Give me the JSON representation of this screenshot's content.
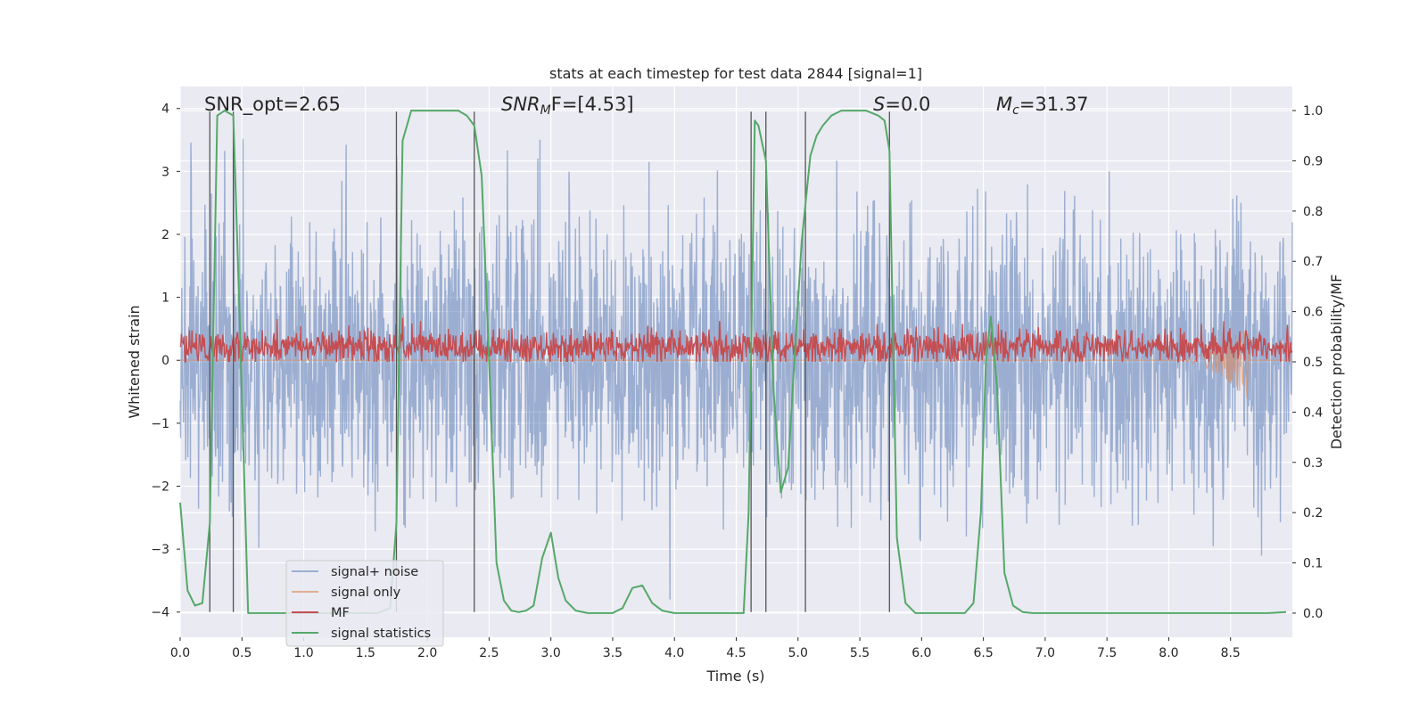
{
  "chart_data": {
    "type": "line",
    "title": "stats at each timestep for test data 2844 [signal=1]",
    "xlabel": "Time (s)",
    "ylabel_left": "Whitened strain",
    "ylabel_right": "Detection probability/MF",
    "xlim": [
      0.0,
      9.0
    ],
    "ylim_left": [
      -4.4,
      4.35
    ],
    "ylim_right": [
      -0.048,
      1.048
    ],
    "x_ticks": [
      0.0,
      0.5,
      1.0,
      1.5,
      2.0,
      2.5,
      3.0,
      3.5,
      4.0,
      4.5,
      5.0,
      5.5,
      6.0,
      6.5,
      7.0,
      7.5,
      8.0,
      8.5
    ],
    "x_tick_labels": [
      "0.0",
      "0.5",
      "1.0",
      "1.5",
      "2.0",
      "2.5",
      "3.0",
      "3.5",
      "4.0",
      "4.5",
      "5.0",
      "5.5",
      "6.0",
      "6.5",
      "7.0",
      "7.5",
      "8.0",
      "8.5"
    ],
    "y_left_ticks": [
      -4,
      -3,
      -2,
      -1,
      0,
      1,
      2,
      3,
      4
    ],
    "y_left_tick_labels": [
      "−4",
      "−3",
      "−2",
      "−1",
      "0",
      "1",
      "2",
      "3",
      "4"
    ],
    "y_right_ticks": [
      0.0,
      0.1,
      0.2,
      0.3,
      0.4,
      0.5,
      0.6,
      0.7,
      0.8,
      0.9,
      1.0
    ],
    "y_right_tick_labels": [
      "0.0",
      "0.1",
      "0.2",
      "0.3",
      "0.4",
      "0.5",
      "0.6",
      "0.7",
      "0.8",
      "0.9",
      "1.0"
    ],
    "grid": true,
    "legend_placement": "lower-left",
    "annotations": {
      "snr_opt": "SNR_opt=2.65",
      "snr_mf_main": "SNR",
      "snr_mf_sub": "M",
      "snr_mf_rest": "F=[4.53]",
      "s_main": "S",
      "s_rest": "=0.0",
      "mc_main": "M",
      "mc_sub": "c",
      "mc_rest": "=31.37"
    },
    "vertical_markers": [
      0.24,
      0.43,
      1.75,
      2.38,
      4.62,
      4.74,
      5.06,
      5.74
    ],
    "series": [
      {
        "name": "signal+ noise",
        "color": "#4c72b0",
        "opacity": 0.5,
        "axis": "left",
        "description_range": [
          -4.0,
          3.8
        ],
        "typical_amplitude": 1.6
      },
      {
        "name": "signal only",
        "color": "#dd8452",
        "opacity": 0.55,
        "axis": "left",
        "chirp_range": [
          8.0,
          8.65
        ],
        "chirp_peak": 0.65
      },
      {
        "name": "MF",
        "color": "#c44e52",
        "axis": "right",
        "baseline": 0.53,
        "spread": 0.045,
        "max": 0.63
      },
      {
        "name": "signal statistics",
        "color": "#55a868",
        "axis": "right",
        "x": [
          0.0,
          0.06,
          0.12,
          0.18,
          0.24,
          0.3,
          0.36,
          0.43,
          0.48,
          0.55,
          0.6,
          0.7,
          0.8,
          0.9,
          1.0,
          1.1,
          1.2,
          1.3,
          1.4,
          1.5,
          1.6,
          1.7,
          1.75,
          1.8,
          1.87,
          1.95,
          2.05,
          2.15,
          2.25,
          2.32,
          2.38,
          2.44,
          2.5,
          2.56,
          2.62,
          2.68,
          2.74,
          2.8,
          2.86,
          2.93,
          3.0,
          3.06,
          3.12,
          3.2,
          3.3,
          3.4,
          3.5,
          3.58,
          3.66,
          3.74,
          3.82,
          3.9,
          4.0,
          4.1,
          4.2,
          4.3,
          4.4,
          4.5,
          4.56,
          4.6,
          4.65,
          4.68,
          4.74,
          4.8,
          4.86,
          4.92,
          4.97,
          5.03,
          5.1,
          5.15,
          5.2,
          5.27,
          5.35,
          5.45,
          5.55,
          5.65,
          5.7,
          5.74,
          5.8,
          5.87,
          5.95,
          6.05,
          6.2,
          6.35,
          6.42,
          6.48,
          6.52,
          6.56,
          6.61,
          6.67,
          6.74,
          6.82,
          6.9,
          7.0,
          7.5,
          8.0,
          8.5,
          8.8,
          8.95
        ],
        "values": [
          0.22,
          0.045,
          0.015,
          0.02,
          0.18,
          0.99,
          1.0,
          0.99,
          0.6,
          0.0,
          0.0,
          0.0,
          0.0,
          0.0,
          0.0,
          0.0,
          0.0,
          0.0,
          0.0,
          0.0,
          0.0,
          0.01,
          0.18,
          0.94,
          1.0,
          1.0,
          1.0,
          1.0,
          1.0,
          0.99,
          0.97,
          0.87,
          0.5,
          0.1,
          0.025,
          0.005,
          0.002,
          0.005,
          0.015,
          0.11,
          0.16,
          0.07,
          0.025,
          0.005,
          0.0,
          0.0,
          0.0,
          0.01,
          0.05,
          0.055,
          0.02,
          0.005,
          0.0,
          0.0,
          0.0,
          0.0,
          0.0,
          0.0,
          0.0,
          0.2,
          0.98,
          0.97,
          0.9,
          0.45,
          0.24,
          0.29,
          0.5,
          0.74,
          0.91,
          0.95,
          0.97,
          0.99,
          1.0,
          1.0,
          1.0,
          0.99,
          0.98,
          0.92,
          0.15,
          0.02,
          0.0,
          0.0,
          0.0,
          0.0,
          0.02,
          0.2,
          0.5,
          0.59,
          0.45,
          0.08,
          0.015,
          0.002,
          0.0,
          0.0,
          0.0,
          0.0,
          0.0,
          0.0,
          0.002
        ]
      }
    ]
  }
}
